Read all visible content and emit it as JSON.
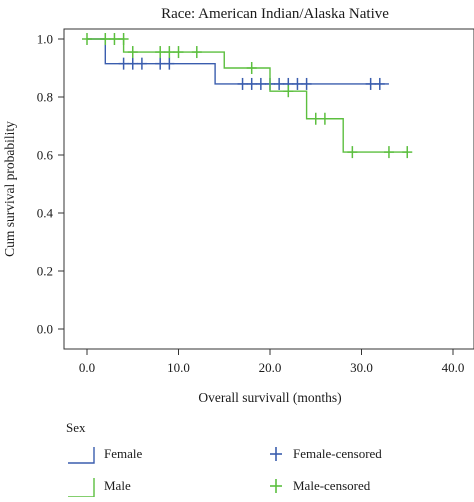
{
  "chart_data": {
    "type": "line",
    "subtype": "kaplan-meier-step",
    "title": "Race: American Indian/Alaska Native",
    "xlabel": "Overall survivall (months)",
    "ylabel": "Cum survival probability",
    "xlim": [
      0,
      40
    ],
    "ylim": [
      0,
      1
    ],
    "x_ticks": [
      "0.0",
      "10.0",
      "20.0",
      "30.0",
      "40.0"
    ],
    "x_tick_values": [
      0,
      10,
      20,
      30,
      40
    ],
    "y_ticks": [
      "0.0",
      "0.2",
      "0.4",
      "0.6",
      "0.8",
      "1.0"
    ],
    "y_tick_values": [
      0,
      0.2,
      0.4,
      0.6,
      0.8,
      1.0
    ],
    "grid": false,
    "legend_title": "Sex",
    "legend_position": "bottom",
    "legend": {
      "female_line": "Female",
      "male_line": "Male",
      "female_censored": "Female-censored",
      "male_censored": "Male-censored"
    },
    "series": [
      {
        "name": "Female",
        "color": "#3a5dae",
        "steps": [
          [
            0,
            1.0
          ],
          [
            2,
            0.915
          ],
          [
            14,
            0.845
          ],
          [
            33,
            0.845
          ]
        ],
        "censored_x": [
          4,
          5,
          6,
          8,
          9,
          17,
          18,
          19,
          20,
          21,
          22,
          23,
          24,
          31,
          32
        ],
        "censored_y": [
          0.915,
          0.915,
          0.915,
          0.915,
          0.915,
          0.845,
          0.845,
          0.845,
          0.845,
          0.845,
          0.845,
          0.845,
          0.845,
          0.845,
          0.845
        ]
      },
      {
        "name": "Male",
        "color": "#5cbf3f",
        "steps": [
          [
            0,
            1.0
          ],
          [
            4,
            0.955
          ],
          [
            15,
            0.9
          ],
          [
            20,
            0.82
          ],
          [
            24,
            0.725
          ],
          [
            28,
            0.61
          ],
          [
            35,
            0.61
          ]
        ],
        "censored_x": [
          0,
          2,
          3,
          4,
          5,
          8,
          9,
          10,
          12,
          18,
          22,
          25,
          26,
          29,
          33,
          35
        ],
        "censored_y": [
          1.0,
          1.0,
          1.0,
          1.0,
          0.955,
          0.955,
          0.955,
          0.955,
          0.955,
          0.9,
          0.82,
          0.725,
          0.725,
          0.61,
          0.61,
          0.61
        ]
      }
    ]
  }
}
